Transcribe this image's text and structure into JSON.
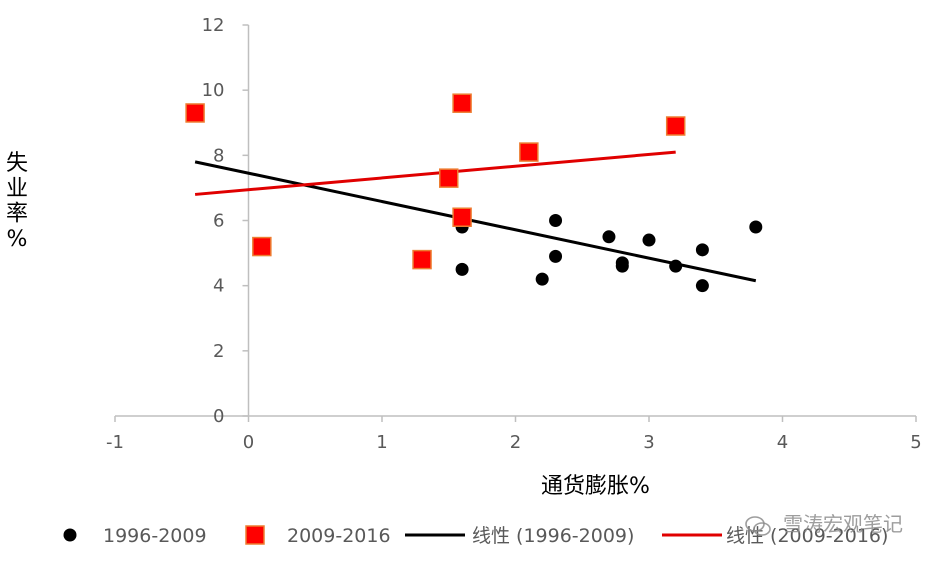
{
  "chart_data": {
    "type": "scatter",
    "xlabel": "通货膨胀%",
    "ylabel": "失业率%",
    "xlim": [
      -1,
      5
    ],
    "ylim": [
      0,
      12
    ],
    "x_ticks": [
      -1,
      0,
      1,
      2,
      3,
      4,
      5
    ],
    "y_ticks": [
      0,
      2,
      4,
      6,
      8,
      10,
      12
    ],
    "grid": false,
    "legend_position": "bottom",
    "series": [
      {
        "name": "1996-2009",
        "marker": "circle",
        "color": "#000000",
        "points": [
          {
            "x": 1.6,
            "y": 5.8
          },
          {
            "x": 1.6,
            "y": 4.5
          },
          {
            "x": 2.2,
            "y": 4.2
          },
          {
            "x": 2.3,
            "y": 6.0
          },
          {
            "x": 2.3,
            "y": 4.9
          },
          {
            "x": 2.7,
            "y": 5.5
          },
          {
            "x": 2.8,
            "y": 4.7
          },
          {
            "x": 2.8,
            "y": 4.6
          },
          {
            "x": 3.0,
            "y": 5.4
          },
          {
            "x": 3.2,
            "y": 4.6
          },
          {
            "x": 3.4,
            "y": 5.1
          },
          {
            "x": 3.4,
            "y": 4.0
          },
          {
            "x": 3.8,
            "y": 5.8
          }
        ]
      },
      {
        "name": "2009-2016",
        "marker": "square",
        "color": "#ff0000",
        "edge_color": "#ed7d31",
        "points": [
          {
            "x": -0.4,
            "y": 9.3
          },
          {
            "x": 0.1,
            "y": 5.2
          },
          {
            "x": 1.3,
            "y": 4.8
          },
          {
            "x": 1.5,
            "y": 7.3
          },
          {
            "x": 1.6,
            "y": 9.6
          },
          {
            "x": 1.6,
            "y": 6.1
          },
          {
            "x": 2.1,
            "y": 8.1
          },
          {
            "x": 3.2,
            "y": 8.9
          }
        ]
      }
    ],
    "trendlines": [
      {
        "name": "线性 (1996-2009)",
        "color": "#000000",
        "x": [
          -0.4,
          3.8
        ],
        "y": [
          7.8,
          4.15
        ]
      },
      {
        "name": "线性 (2009-2016)",
        "color": "#e00000",
        "x": [
          -0.4,
          3.2
        ],
        "y": [
          6.8,
          8.1
        ]
      }
    ]
  },
  "watermark": {
    "text": "雪涛宏观笔记",
    "icon": "wechat-icon"
  }
}
